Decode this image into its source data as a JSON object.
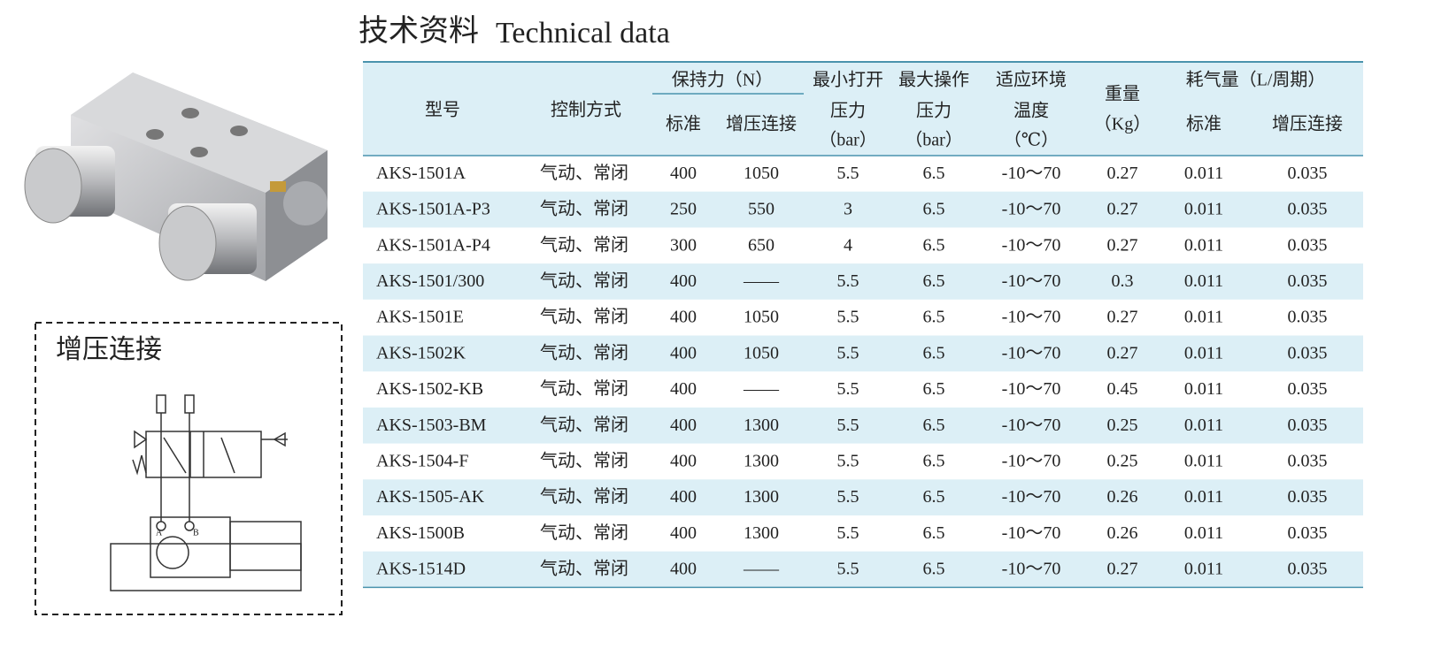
{
  "header": {
    "title_cn": "技术资料",
    "title_en": "Technical data"
  },
  "inset": {
    "label": "增压连接",
    "port_a": "A",
    "port_b": "B"
  },
  "table": {
    "head": [
      {
        "lines": [
          "型号"
        ]
      },
      {
        "lines": [
          "控制方式"
        ]
      },
      {
        "group": "保持力（N）",
        "sub": [
          "标准",
          "增压连接"
        ]
      },
      {
        "lines": [
          "最小打开",
          "压力",
          "（bar）"
        ]
      },
      {
        "lines": [
          "最大操作",
          "压力",
          "（bar）"
        ]
      },
      {
        "lines": [
          "适应环境",
          "温度",
          "（℃）"
        ]
      },
      {
        "lines": [
          "重量",
          "（Kg）"
        ]
      },
      {
        "group": "耗气量（L/周期）",
        "sub": [
          "标准",
          "增压连接"
        ]
      }
    ],
    "rows": [
      [
        "AKS-1501A",
        "气动、常闭",
        "400",
        "1050",
        "5.5",
        "6.5",
        "-10～70",
        "0.27",
        "0.011",
        "0.035"
      ],
      [
        "AKS-1501A-P3",
        "气动、常闭",
        "250",
        "550",
        "3",
        "6.5",
        "-10～70",
        "0.27",
        "0.011",
        "0.035"
      ],
      [
        "AKS-1501A-P4",
        "气动、常闭",
        "300",
        "650",
        "4",
        "6.5",
        "-10～70",
        "0.27",
        "0.011",
        "0.035"
      ],
      [
        "AKS-1501/300",
        "气动、常闭",
        "400",
        "——",
        "5.5",
        "6.5",
        "-10～70",
        "0.3",
        "0.011",
        "0.035"
      ],
      [
        "AKS-1501E",
        "气动、常闭",
        "400",
        "1050",
        "5.5",
        "6.5",
        "-10～70",
        "0.27",
        "0.011",
        "0.035"
      ],
      [
        "AKS-1502K",
        "气动、常闭",
        "400",
        "1050",
        "5.5",
        "6.5",
        "-10～70",
        "0.27",
        "0.011",
        "0.035"
      ],
      [
        "AKS-1502-KB",
        "气动、常闭",
        "400",
        "——",
        "5.5",
        "6.5",
        "-10～70",
        "0.45",
        "0.011",
        "0.035"
      ],
      [
        "AKS-1503-BM",
        "气动、常闭",
        "400",
        "1300",
        "5.5",
        "6.5",
        "-10～70",
        "0.25",
        "0.011",
        "0.035"
      ],
      [
        "AKS-1504-F",
        "气动、常闭",
        "400",
        "1300",
        "5.5",
        "6.5",
        "-10～70",
        "0.25",
        "0.011",
        "0.035"
      ],
      [
        "AKS-1505-AK",
        "气动、常闭",
        "400",
        "1300",
        "5.5",
        "6.5",
        "-10～70",
        "0.26",
        "0.011",
        "0.035"
      ],
      [
        "AKS-1500B",
        "气动、常闭",
        "400",
        "1300",
        "5.5",
        "6.5",
        "-10～70",
        "0.26",
        "0.011",
        "0.035"
      ],
      [
        "AKS-1514D",
        "气动、常闭",
        "400",
        "——",
        "5.5",
        "6.5",
        "-10～70",
        "0.27",
        "0.011",
        "0.035"
      ]
    ]
  }
}
